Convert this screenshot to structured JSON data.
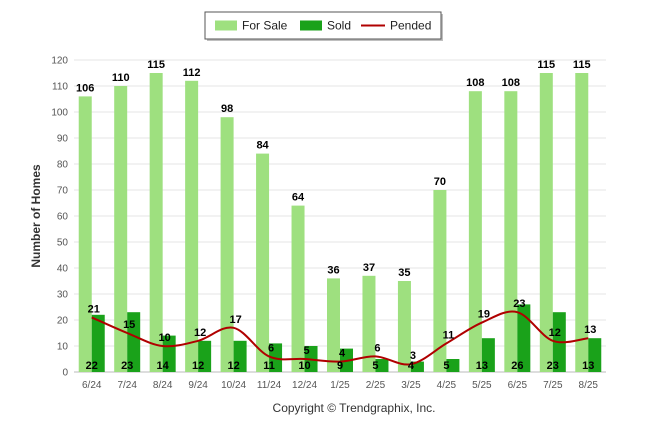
{
  "chart_data": {
    "type": "bar",
    "categories": [
      "6/24",
      "7/24",
      "8/24",
      "9/24",
      "10/24",
      "11/24",
      "12/24",
      "1/25",
      "2/25",
      "3/25",
      "4/25",
      "5/25",
      "6/25",
      "7/25",
      "8/25"
    ],
    "series": [
      {
        "name": "For Sale",
        "type": "bar",
        "color": "#9ee07f",
        "values": [
          106,
          110,
          115,
          112,
          98,
          84,
          64,
          36,
          37,
          35,
          70,
          108,
          108,
          115,
          115
        ]
      },
      {
        "name": "Sold",
        "type": "bar",
        "color": "#1aa21a",
        "values": [
          22,
          23,
          14,
          12,
          12,
          11,
          10,
          9,
          5,
          4,
          5,
          13,
          26,
          23,
          13
        ]
      },
      {
        "name": "Pended",
        "type": "line",
        "color": "#b00000",
        "values": [
          21,
          15,
          10,
          12,
          17,
          6,
          5,
          4,
          6,
          3,
          11,
          19,
          23,
          12,
          13
        ]
      }
    ],
    "ylabel": "Number of Homes",
    "xlabel": "",
    "ylim": [
      0,
      120
    ],
    "yticks": [
      0,
      10,
      20,
      30,
      40,
      50,
      60,
      70,
      80,
      90,
      100,
      110,
      120
    ],
    "grid": true,
    "legend": "top-center",
    "credit": "Copyright © Trendgraphix, Inc."
  }
}
